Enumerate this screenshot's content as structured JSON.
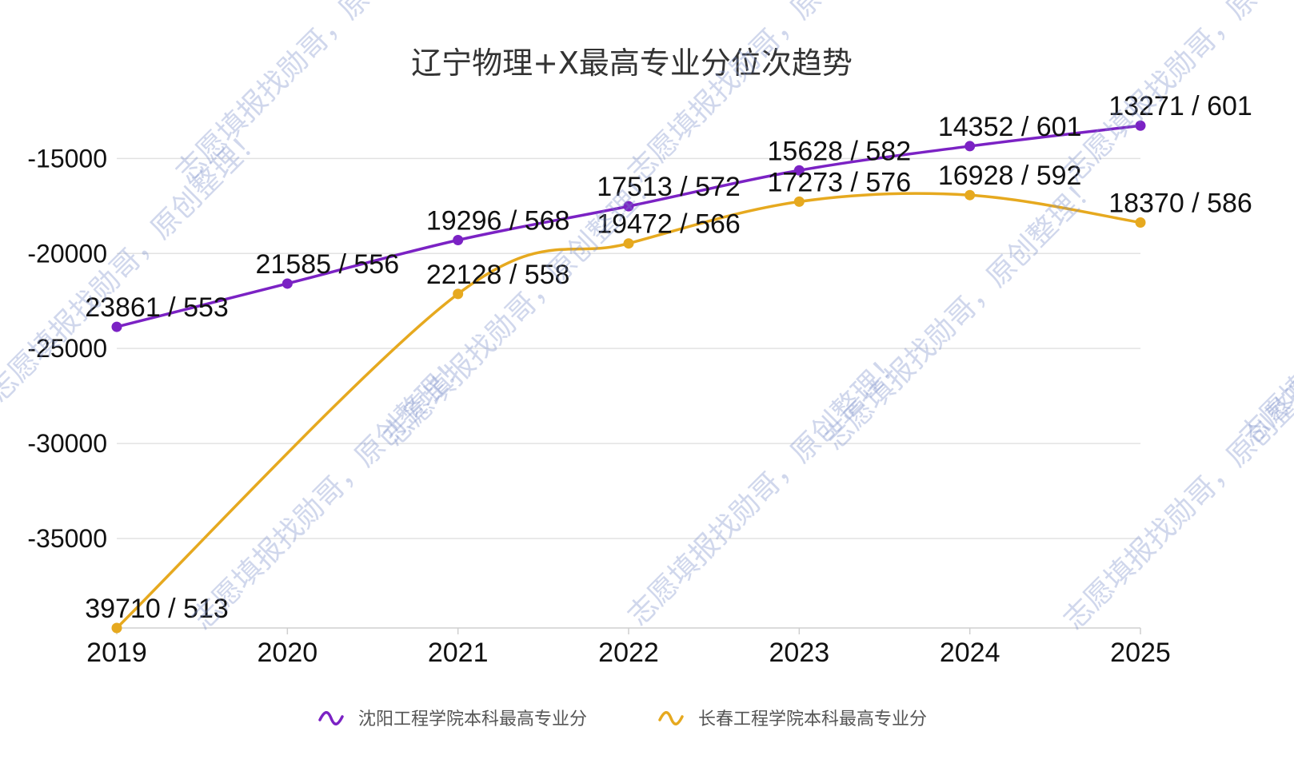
{
  "chart_data": {
    "type": "line",
    "title": "辽宁物理+X最高专业分位次趋势",
    "x": [
      "2019",
      "2020",
      "2021",
      "2022",
      "2023",
      "2024",
      "2025"
    ],
    "y_ticks": [
      "-15000",
      "-20000",
      "-25000",
      "-30000",
      "-35000"
    ],
    "ylim": [
      -39710,
      -12000
    ],
    "grid": true,
    "legend_position": "bottom",
    "series": [
      {
        "name": "沈阳工程学院本科最高专业分",
        "color": "#7B22C4",
        "values": [
          -23861,
          -21585,
          -19296,
          -17513,
          -15628,
          -14352,
          -13271
        ],
        "labels": [
          "23861 / 553",
          "21585 / 556",
          "19296 / 568",
          "17513 / 572",
          "15628 / 582",
          "14352 / 601",
          "13271 / 601"
        ]
      },
      {
        "name": "长春工程学院本科最高专业分",
        "color": "#E6A91F",
        "values": [
          -39710,
          null,
          -22128,
          -19472,
          -17273,
          -16928,
          -18370
        ],
        "labels": [
          "39710 / 513",
          "",
          "22128 / 558",
          "19472 / 566",
          "17273 / 576",
          "16928 / 592",
          "18370 / 586"
        ]
      }
    ]
  },
  "watermark": "志愿填报找勋哥，原创整理！"
}
